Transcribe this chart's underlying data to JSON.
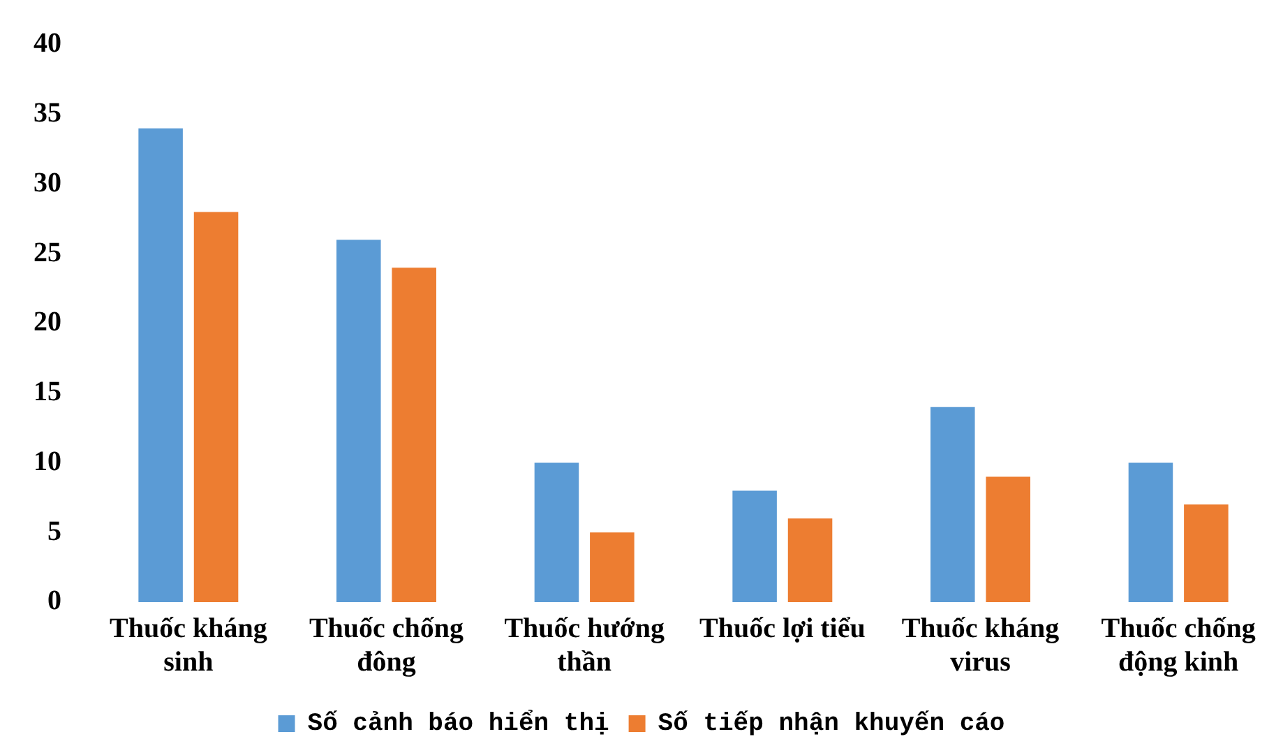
{
  "chart_data": {
    "type": "bar",
    "categories": [
      "Thuốc kháng sinh",
      "Thuốc chống đông",
      "Thuốc hướng thần",
      "Thuốc lợi tiểu",
      "Thuốc kháng virus",
      "Thuốc chống động kinh"
    ],
    "series": [
      {
        "name": "Số cảnh báo hiển thị",
        "color": "#5b9bd5",
        "values": [
          34,
          26,
          10,
          8,
          14,
          10
        ]
      },
      {
        "name": "Số tiếp nhận khuyến cáo",
        "color": "#ed7d31",
        "values": [
          28,
          24,
          5,
          6,
          9,
          7
        ]
      }
    ],
    "ylim": [
      0,
      40
    ],
    "yticks": [
      0,
      5,
      10,
      15,
      20,
      25,
      30,
      35,
      40
    ],
    "grid": false,
    "legend": "bottom"
  }
}
